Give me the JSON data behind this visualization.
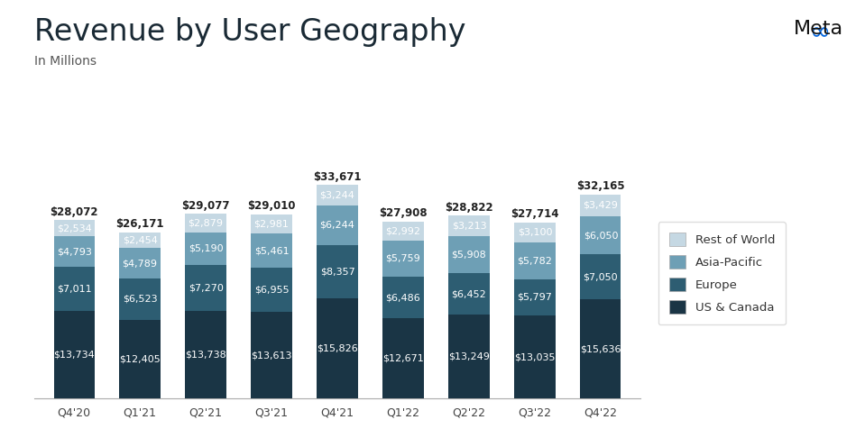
{
  "title": "Revenue by User Geography",
  "subtitle": "In Millions",
  "quarters": [
    "Q4'20",
    "Q1'21",
    "Q2'21",
    "Q3'21",
    "Q4'21",
    "Q1'22",
    "Q2'22",
    "Q3'22",
    "Q4'22"
  ],
  "us_canada": [
    13734,
    12405,
    13738,
    13613,
    15826,
    12671,
    13249,
    13035,
    15636
  ],
  "europe": [
    7011,
    6523,
    7270,
    6955,
    8357,
    6486,
    6452,
    5797,
    7050
  ],
  "asia_pacific": [
    4793,
    4789,
    5190,
    5461,
    6244,
    5759,
    5908,
    5782,
    6050
  ],
  "rest_world": [
    2534,
    2454,
    2879,
    2981,
    3244,
    2992,
    3213,
    3100,
    3429
  ],
  "totals": [
    28072,
    26171,
    29077,
    29010,
    33671,
    27908,
    28822,
    27714,
    32165
  ],
  "color_us_canada": "#1a3545",
  "color_europe": "#2d5d72",
  "color_asia_pacific": "#6e9fb5",
  "color_rest_world": "#c5d8e3",
  "background_color": "#ffffff",
  "bar_width": 0.62,
  "title_fontsize": 24,
  "subtitle_fontsize": 10,
  "label_fontsize": 8.0,
  "total_fontsize": 8.5,
  "tick_fontsize": 9,
  "legend_labels": [
    "Rest of World",
    "Asia-Pacific",
    "Europe",
    "US & Canada"
  ]
}
